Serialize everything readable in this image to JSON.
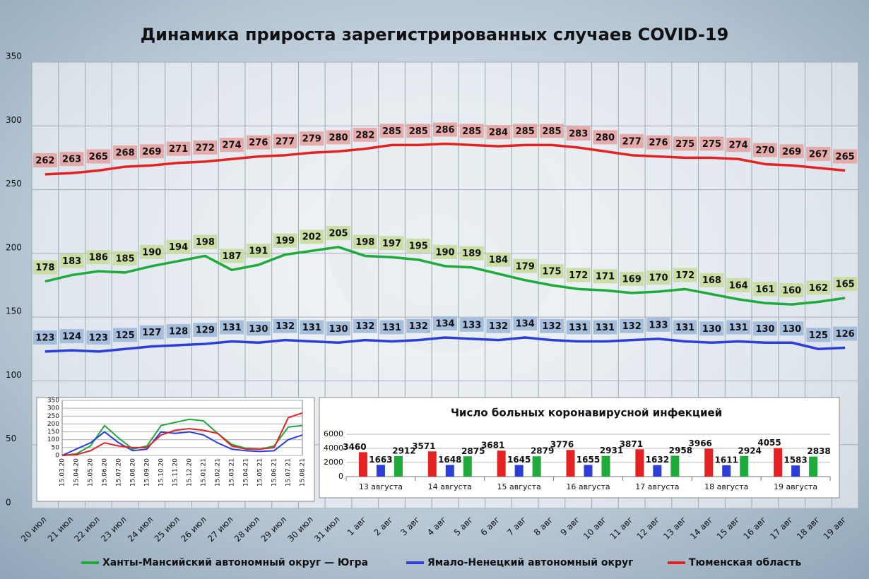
{
  "chart_data": [
    {
      "type": "line",
      "title": "Динамика прироста зарегистрированных случаев COVID-19",
      "categories": [
        "20 июл",
        "21 июл",
        "22 июл",
        "23 июл",
        "24 июл",
        "25 июл",
        "26 июл",
        "27 июл",
        "28 июл",
        "29 июл",
        "30 июл",
        "31 июл",
        "1 авг",
        "2 авг",
        "3 авг",
        "4 авг",
        "5 авг",
        "6 авг",
        "7 авг",
        "8 авг",
        "9 авг",
        "10 авг",
        "11 авг",
        "12 авг",
        "13 авг",
        "14 авг",
        "15 авг",
        "16 авг",
        "17 авг",
        "18 авг",
        "19 авг"
      ],
      "series": [
        {
          "name": "Ханты-Мансийский автономный округ — Югра",
          "color": "#1faa3c",
          "label_color": "#c6dd9c",
          "values": [
            178,
            183,
            186,
            185,
            190,
            194,
            198,
            187,
            191,
            199,
            202,
            205,
            198,
            197,
            195,
            190,
            189,
            184,
            179,
            175,
            172,
            171,
            169,
            170,
            172,
            168,
            164,
            161,
            160,
            162,
            165
          ]
        },
        {
          "name": "Ямало-Ненецкий автономный округ",
          "color": "#2b3fd8",
          "label_color": "#9fb8dc",
          "values": [
            123,
            124,
            123,
            125,
            127,
            128,
            129,
            131,
            130,
            132,
            131,
            130,
            132,
            131,
            132,
            134,
            133,
            132,
            134,
            132,
            131,
            131,
            132,
            133,
            131,
            130,
            131,
            130,
            130,
            125,
            126
          ]
        },
        {
          "name": "Тюменская область",
          "color": "#e52222",
          "label_color": "#e6a3a3",
          "values": [
            262,
            263,
            265,
            268,
            269,
            271,
            272,
            274,
            276,
            277,
            279,
            280,
            282,
            285,
            285,
            286,
            285,
            284,
            285,
            285,
            283,
            280,
            277,
            276,
            275,
            275,
            274,
            270,
            269,
            267,
            265
          ]
        }
      ],
      "ylim": [
        0,
        350
      ],
      "yticks": [
        0,
        50,
        100,
        150,
        200,
        250,
        300,
        350
      ],
      "grid": true,
      "legend": "bottom"
    },
    {
      "type": "line",
      "categories": [
        "15.03.20",
        "15.04.20",
        "15.05.20",
        "15.06.20",
        "15.07.20",
        "15.08.20",
        "15.09.20",
        "15.10.20",
        "15.11.20",
        "15.12.20",
        "15.01.21",
        "15.02.21",
        "15.03.21",
        "15.04.21",
        "15.05.21",
        "15.06.21",
        "15.07.21",
        "15.08.21"
      ],
      "series": [
        {
          "color": "#1faa3c",
          "values": [
            0,
            10,
            60,
            190,
            110,
            40,
            60,
            190,
            210,
            230,
            220,
            140,
            70,
            45,
            40,
            60,
            180,
            190
          ]
        },
        {
          "color": "#2b3fd8",
          "values": [
            0,
            40,
            80,
            150,
            80,
            30,
            40,
            150,
            140,
            150,
            130,
            80,
            40,
            30,
            25,
            30,
            100,
            130
          ]
        },
        {
          "color": "#e52222",
          "values": [
            0,
            5,
            30,
            80,
            60,
            50,
            50,
            130,
            160,
            170,
            160,
            140,
            60,
            40,
            40,
            50,
            240,
            270
          ]
        }
      ],
      "ylim": [
        0,
        350
      ],
      "yticks": [
        0,
        50,
        100,
        150,
        200,
        250,
        300,
        350
      ],
      "grid": true
    },
    {
      "type": "bar",
      "title": "Число больных коронавирусной  инфекцией",
      "categories": [
        "13 августа",
        "14 августа",
        "15 августа",
        "16 августа",
        "17 августа",
        "18 августа",
        "19 августа"
      ],
      "series": [
        {
          "color": "#e52222",
          "values": [
            3460,
            3571,
            3681,
            3776,
            3871,
            3966,
            4055
          ]
        },
        {
          "color": "#2b3fd8",
          "values": [
            1663,
            1648,
            1645,
            1655,
            1632,
            1611,
            1583
          ]
        },
        {
          "color": "#1faa3c",
          "values": [
            2912,
            2875,
            2879,
            2931,
            2958,
            2924,
            2838
          ]
        }
      ],
      "ylim": [
        0,
        6000
      ],
      "yticks": [
        0,
        2000,
        4000,
        6000
      ],
      "grid": true
    }
  ]
}
